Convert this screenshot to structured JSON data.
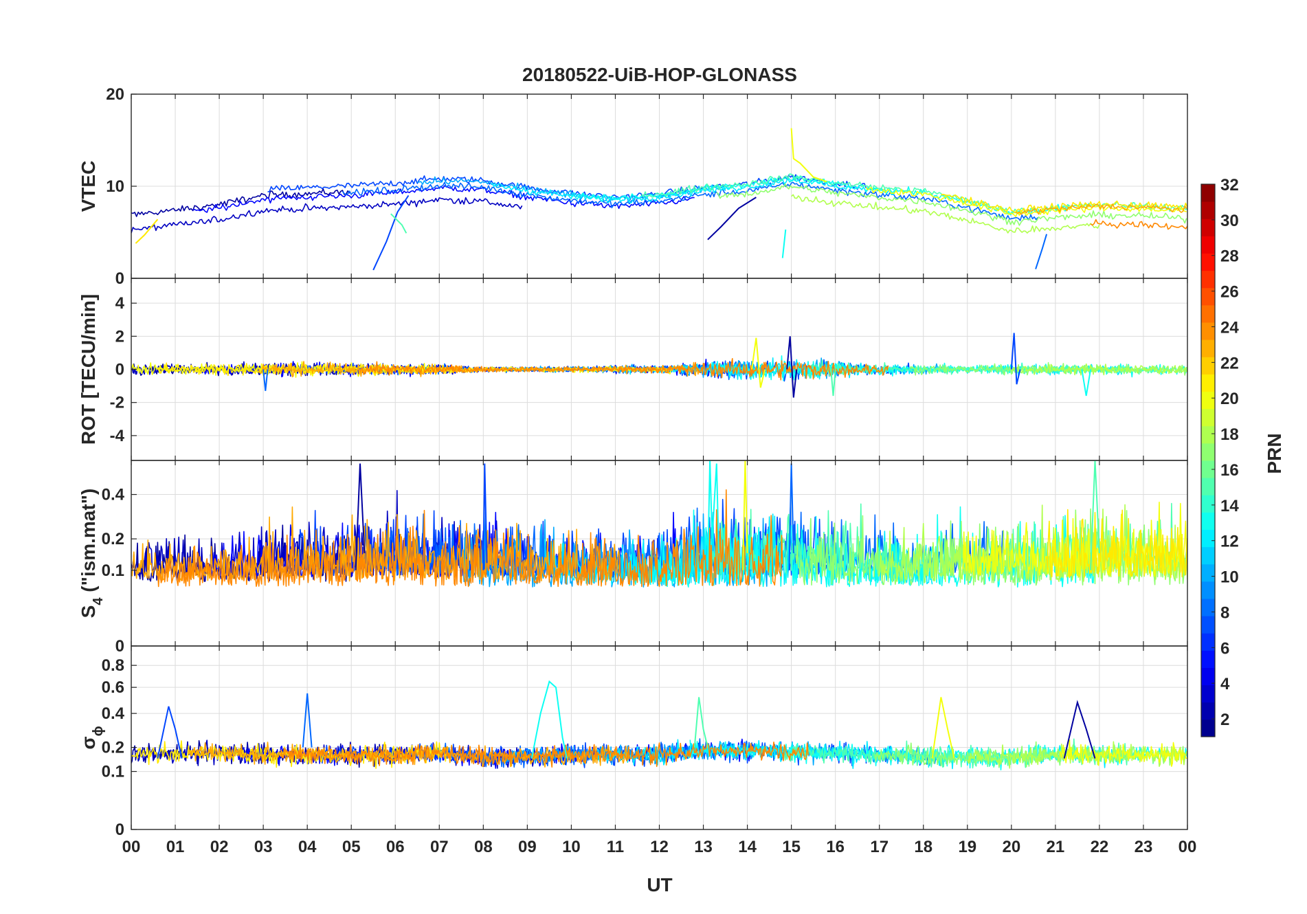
{
  "title": "20180522-UiB-HOP-GLONASS",
  "chart_data": [
    {
      "type": "line",
      "panel": "vtec",
      "ylabel": "VTEC",
      "ylim": [
        0,
        20
      ],
      "yticks": [
        0,
        10,
        20
      ],
      "grid": true,
      "baseline_points": [
        [
          0,
          6.5
        ],
        [
          1,
          7.0
        ],
        [
          2,
          7.6
        ],
        [
          3,
          8.6
        ],
        [
          4,
          8.8
        ],
        [
          5,
          9.0
        ],
        [
          6,
          9.3
        ],
        [
          7,
          9.8
        ],
        [
          8,
          9.6
        ],
        [
          9,
          8.8
        ],
        [
          10,
          8.2
        ],
        [
          11,
          7.8
        ],
        [
          12,
          8.1
        ],
        [
          13,
          8.8
        ],
        [
          14,
          9.2
        ],
        [
          15,
          10.0
        ],
        [
          16,
          9.3
        ],
        [
          17,
          8.8
        ],
        [
          18,
          8.4
        ],
        [
          19,
          7.4
        ],
        [
          20,
          6.2
        ],
        [
          21,
          6.6
        ],
        [
          22,
          6.9
        ],
        [
          23,
          6.8
        ],
        [
          24,
          6.5
        ]
      ],
      "spread": 1.3,
      "noise": 0.35,
      "features": [
        {
          "name": "rising arc 05:30",
          "points": [
            [
              5.5,
              0.9
            ],
            [
              5.8,
              4.0
            ],
            [
              6.05,
              7.2
            ],
            [
              6.3,
              9.0
            ]
          ]
        },
        {
          "name": "spike 14:50",
          "points": [
            [
              14.8,
              2.2
            ],
            [
              14.87,
              5.3
            ]
          ]
        },
        {
          "name": "peak 15:00",
          "points": [
            [
              15.0,
              16.3
            ],
            [
              15.05,
              13.0
            ],
            [
              15.2,
              12.5
            ],
            [
              15.5,
              11.0
            ],
            [
              15.8,
              10.5
            ]
          ]
        },
        {
          "name": "rising arc 13:10",
          "points": [
            [
              13.1,
              4.2
            ],
            [
              13.4,
              5.6
            ],
            [
              13.8,
              7.6
            ],
            [
              14.2,
              8.8
            ]
          ]
        },
        {
          "name": "rising arc 20:50",
          "points": [
            [
              20.55,
              1.0
            ],
            [
              20.7,
              3.2
            ],
            [
              20.8,
              4.8
            ]
          ]
        },
        {
          "name": "drop 06:15",
          "points": [
            [
              5.9,
              7.0
            ],
            [
              6.15,
              5.8
            ],
            [
              6.25,
              4.9
            ]
          ]
        },
        {
          "name": "start 00:10",
          "points": [
            [
              0.1,
              3.8
            ],
            [
              0.3,
              4.7
            ],
            [
              0.6,
              6.4
            ]
          ]
        }
      ]
    },
    {
      "type": "line",
      "panel": "rot",
      "ylabel": "ROT [TECU/min]",
      "ylim": [
        -5.5,
        5.5
      ],
      "yticks": [
        -4,
        -2,
        0,
        2,
        4
      ],
      "grid": true,
      "activity": [
        [
          0,
          0.5
        ],
        [
          1,
          0.5
        ],
        [
          2,
          0.6
        ],
        [
          3,
          0.6
        ],
        [
          4,
          0.6
        ],
        [
          5,
          0.6
        ],
        [
          6,
          0.5
        ],
        [
          7,
          0.5
        ],
        [
          8,
          0.25
        ],
        [
          9,
          0.25
        ],
        [
          10,
          0.3
        ],
        [
          11,
          0.35
        ],
        [
          12,
          0.4
        ],
        [
          13,
          0.7
        ],
        [
          14,
          0.9
        ],
        [
          15,
          1.0
        ],
        [
          16,
          0.8
        ],
        [
          17,
          0.5
        ],
        [
          18,
          0.45
        ],
        [
          19,
          0.4
        ],
        [
          20,
          0.5
        ],
        [
          21,
          0.5
        ],
        [
          22,
          0.5
        ],
        [
          23,
          0.5
        ],
        [
          24,
          0.5
        ]
      ],
      "features": [
        {
          "name": "spike 20:00",
          "points": [
            [
              20.0,
              0.0
            ],
            [
              20.06,
              2.2
            ],
            [
              20.12,
              -0.9
            ],
            [
              20.2,
              0.0
            ]
          ]
        },
        {
          "name": "dip 21:45",
          "points": [
            [
              21.6,
              0.0
            ],
            [
              21.7,
              -1.6
            ],
            [
              21.8,
              0.0
            ]
          ]
        },
        {
          "name": "spike 14:15",
          "points": [
            [
              14.1,
              0.0
            ],
            [
              14.2,
              1.9
            ],
            [
              14.3,
              -1.1
            ],
            [
              14.4,
              0.0
            ]
          ]
        },
        {
          "name": "spike 15:00",
          "points": [
            [
              14.9,
              0.0
            ],
            [
              14.97,
              2.0
            ],
            [
              15.05,
              -1.7
            ],
            [
              15.12,
              0.0
            ]
          ]
        },
        {
          "name": "dip 03:05",
          "points": [
            [
              3.0,
              0.0
            ],
            [
              3.05,
              -1.3
            ],
            [
              3.1,
              0.0
            ]
          ]
        },
        {
          "name": "dip 15:55",
          "points": [
            [
              15.9,
              0.0
            ],
            [
              15.95,
              -1.6
            ],
            [
              16.0,
              0.0
            ]
          ]
        }
      ]
    },
    {
      "type": "line",
      "panel": "s4",
      "ylabel": "S",
      "ylabel_subscript": "4",
      "ylabel_suffix": " (\"ism.mat\")",
      "ylim": [
        0,
        0.6
      ],
      "scale": "sqrt",
      "yticks": [
        0,
        0.1,
        0.2,
        0.4
      ],
      "grid": true,
      "activity": [
        [
          0,
          0.15
        ],
        [
          1,
          0.2
        ],
        [
          2,
          0.17
        ],
        [
          3,
          0.2
        ],
        [
          4,
          0.25
        ],
        [
          5,
          0.28
        ],
        [
          6,
          0.3
        ],
        [
          7,
          0.28
        ],
        [
          8,
          0.3
        ],
        [
          9,
          0.25
        ],
        [
          10,
          0.2
        ],
        [
          11,
          0.2
        ],
        [
          12,
          0.22
        ],
        [
          13,
          0.35
        ],
        [
          14,
          0.3
        ],
        [
          15,
          0.35
        ],
        [
          16,
          0.3
        ],
        [
          17,
          0.25
        ],
        [
          18,
          0.22
        ],
        [
          19,
          0.25
        ],
        [
          20,
          0.25
        ],
        [
          21,
          0.3
        ],
        [
          22,
          0.35
        ],
        [
          23,
          0.3
        ],
        [
          24,
          0.3
        ]
      ],
      "features": [
        {
          "name": "spike 08:00",
          "points": [
            [
              8.0,
              0.1
            ],
            [
              8.03,
              0.58
            ],
            [
              8.08,
              0.12
            ]
          ]
        },
        {
          "name": "spike 13:10",
          "points": [
            [
              13.1,
              0.1
            ],
            [
              13.15,
              0.6
            ],
            [
              13.2,
              0.2
            ],
            [
              13.3,
              0.58
            ],
            [
              13.35,
              0.15
            ]
          ]
        },
        {
          "name": "spike 13:55",
          "points": [
            [
              13.9,
              0.1
            ],
            [
              13.95,
              0.6
            ],
            [
              14.0,
              0.15
            ]
          ]
        },
        {
          "name": "spike 05:15",
          "points": [
            [
              5.1,
              0.1
            ],
            [
              5.2,
              0.58
            ],
            [
              5.3,
              0.15
            ]
          ]
        },
        {
          "name": "spike 15:00",
          "points": [
            [
              14.95,
              0.1
            ],
            [
              15.0,
              0.58
            ],
            [
              15.05,
              0.15
            ]
          ]
        },
        {
          "name": "spike 21:50",
          "points": [
            [
              21.8,
              0.1
            ],
            [
              21.9,
              0.6
            ],
            [
              22.0,
              0.15
            ]
          ]
        }
      ]
    },
    {
      "type": "line",
      "panel": "sigma_phi",
      "ylabel": "σ",
      "ylabel_subscript": "ϕ",
      "ylim": [
        0,
        1
      ],
      "scale": "sqrt",
      "yticks": [
        0,
        0.1,
        0.2,
        0.4,
        0.6,
        0.8
      ],
      "grid": true,
      "base": [
        [
          0,
          0.15
        ],
        [
          1,
          0.16
        ],
        [
          2,
          0.16
        ],
        [
          3,
          0.15
        ],
        [
          4,
          0.15
        ],
        [
          5,
          0.15
        ],
        [
          6,
          0.15
        ],
        [
          7,
          0.16
        ],
        [
          8,
          0.14
        ],
        [
          9,
          0.14
        ],
        [
          10,
          0.15
        ],
        [
          11,
          0.15
        ],
        [
          12,
          0.15
        ],
        [
          13,
          0.17
        ],
        [
          14,
          0.17
        ],
        [
          15,
          0.16
        ],
        [
          16,
          0.16
        ],
        [
          17,
          0.15
        ],
        [
          18,
          0.14
        ],
        [
          19,
          0.14
        ],
        [
          20,
          0.14
        ],
        [
          21,
          0.15
        ],
        [
          22,
          0.15
        ],
        [
          23,
          0.15
        ],
        [
          24,
          0.15
        ]
      ],
      "features": [
        {
          "name": "bump 00:50",
          "points": [
            [
              0.6,
              0.15
            ],
            [
              0.85,
              0.45
            ],
            [
              1.0,
              0.3
            ],
            [
              1.15,
              0.15
            ]
          ]
        },
        {
          "name": "peak 09:35",
          "points": [
            [
              9.1,
              0.15
            ],
            [
              9.3,
              0.4
            ],
            [
              9.5,
              0.65
            ],
            [
              9.65,
              0.6
            ],
            [
              9.8,
              0.25
            ],
            [
              9.9,
              0.15
            ]
          ]
        },
        {
          "name": "bump 18:25",
          "points": [
            [
              18.2,
              0.15
            ],
            [
              18.4,
              0.52
            ],
            [
              18.55,
              0.3
            ],
            [
              18.7,
              0.15
            ]
          ]
        },
        {
          "name": "bump 21:35",
          "points": [
            [
              21.2,
              0.15
            ],
            [
              21.5,
              0.48
            ],
            [
              21.7,
              0.3
            ],
            [
              21.9,
              0.15
            ]
          ]
        },
        {
          "name": "bump 04:00",
          "points": [
            [
              3.9,
              0.2
            ],
            [
              4.0,
              0.55
            ],
            [
              4.1,
              0.2
            ]
          ]
        },
        {
          "name": "bump 12:55",
          "points": [
            [
              12.8,
              0.2
            ],
            [
              12.9,
              0.52
            ],
            [
              13.0,
              0.3
            ],
            [
              13.1,
              0.2
            ]
          ]
        }
      ]
    }
  ],
  "xaxis": {
    "label": "UT",
    "range": [
      0,
      24
    ],
    "ticklabels": [
      "00",
      "01",
      "02",
      "03",
      "04",
      "05",
      "06",
      "07",
      "08",
      "09",
      "10",
      "11",
      "12",
      "13",
      "14",
      "15",
      "16",
      "17",
      "18",
      "19",
      "20",
      "21",
      "22",
      "23",
      "00"
    ]
  },
  "colorbar": {
    "label": "PRN",
    "range": [
      1,
      32
    ],
    "ticks": [
      2,
      4,
      6,
      8,
      10,
      12,
      14,
      16,
      18,
      20,
      22,
      24,
      26,
      28,
      30,
      32
    ],
    "colormap": "jet",
    "levels": 32
  },
  "series_prns": [
    2,
    3,
    5,
    7,
    8,
    10,
    12,
    13,
    15,
    17,
    18,
    20,
    21,
    23,
    24
  ]
}
